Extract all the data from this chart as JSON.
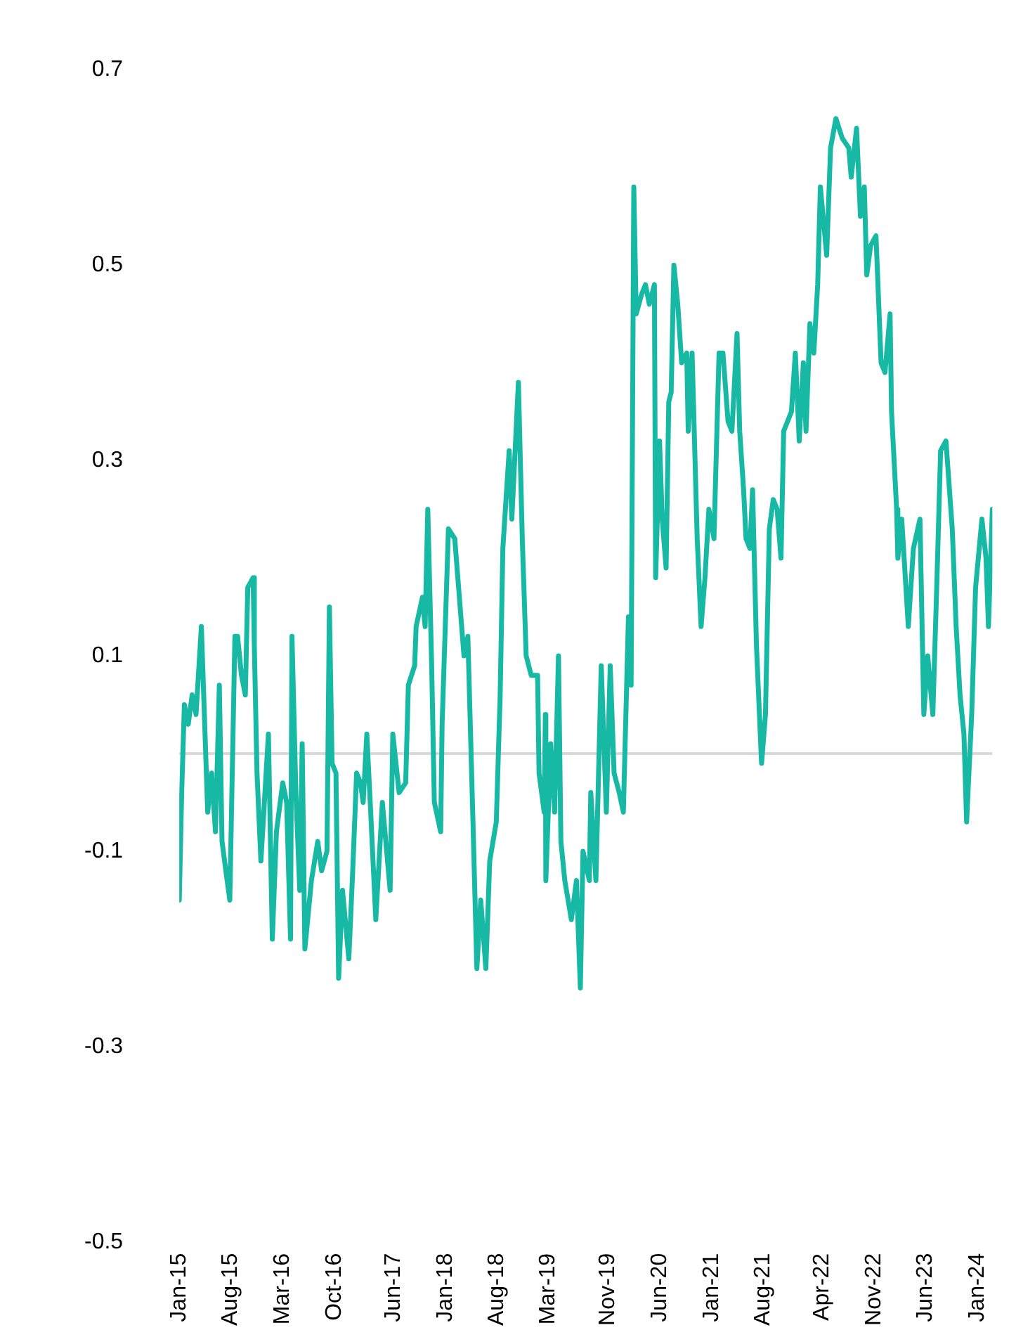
{
  "chart_data": {
    "type": "line",
    "line_style": "solid",
    "marker": "none",
    "grid": false,
    "legend": false,
    "xlim": [
      "2015-01-01",
      "2024-03-01"
    ],
    "xticks": [
      {
        "value": "2015-01-01",
        "label": "Jan-15"
      },
      {
        "value": "2015-08-01",
        "label": "Aug-15"
      },
      {
        "value": "2016-03-01",
        "label": "Mar-16"
      },
      {
        "value": "2016-10-01",
        "label": "Oct-16"
      },
      {
        "value": "2017-06-01",
        "label": "Jun-17"
      },
      {
        "value": "2018-01-01",
        "label": "Jan-18"
      },
      {
        "value": "2018-08-01",
        "label": "Aug-18"
      },
      {
        "value": "2019-03-01",
        "label": "Mar-19"
      },
      {
        "value": "2019-11-01",
        "label": "Nov-19"
      },
      {
        "value": "2020-06-01",
        "label": "Jun-20"
      },
      {
        "value": "2021-01-01",
        "label": "Jan-21"
      },
      {
        "value": "2021-08-01",
        "label": "Aug-21"
      },
      {
        "value": "2022-04-01",
        "label": "Apr-22"
      },
      {
        "value": "2022-11-01",
        "label": "Nov-22"
      },
      {
        "value": "2023-06-01",
        "label": "Jun-23"
      },
      {
        "value": "2024-01-01",
        "label": "Jan-24"
      }
    ],
    "ylim": [
      -0.5,
      0.7
    ],
    "yticks": [
      -0.5,
      -0.3,
      -0.1,
      0.1,
      0.3,
      0.5,
      0.7
    ],
    "ref_lines": [
      {
        "axis": "y",
        "value": 0,
        "color": "#d9d9d9"
      }
    ],
    "series": [
      {
        "color": "#17b9a5",
        "x": [
          "2015-01-01",
          "2015-01-11",
          "2015-01-22",
          "2015-02-07",
          "2015-02-23",
          "2015-03-11",
          "2015-04-02",
          "2015-04-28",
          "2015-05-14",
          "2015-05-30",
          "2015-06-15",
          "2015-06-26",
          "2015-07-17",
          "2015-07-28",
          "2015-08-18",
          "2015-08-29",
          "2015-09-14",
          "2015-09-30",
          "2015-10-10",
          "2015-11-01",
          "2015-11-06",
          "2015-11-17",
          "2015-12-03",
          "2016-01-03",
          "2016-01-19",
          "2016-02-05",
          "2016-03-02",
          "2016-03-18",
          "2016-04-03",
          "2016-04-09",
          "2016-04-25",
          "2016-05-11",
          "2016-05-21",
          "2016-06-01",
          "2016-06-28",
          "2016-07-24",
          "2016-08-09",
          "2016-08-31",
          "2016-09-10",
          "2016-09-21",
          "2016-10-07",
          "2016-10-18",
          "2016-11-03",
          "2016-11-29",
          "2016-12-15",
          "2016-12-31",
          "2017-01-16",
          "2017-01-27",
          "2017-02-11",
          "2017-02-27",
          "2017-03-20",
          "2017-04-16",
          "2017-05-18",
          "2017-05-29",
          "2017-06-24",
          "2017-07-21",
          "2017-08-01",
          "2017-08-27",
          "2017-09-02",
          "2017-09-28",
          "2017-10-09",
          "2017-10-20",
          "2017-11-05",
          "2017-11-16",
          "2017-12-12",
          "2017-12-18",
          "2018-01-13",
          "2018-02-08",
          "2018-03-18",
          "2018-04-03",
          "2018-04-24",
          "2018-05-10",
          "2018-05-26",
          "2018-06-16",
          "2018-07-02",
          "2018-07-29",
          "2018-08-14",
          "2018-08-25",
          "2018-09-20",
          "2018-10-01",
          "2018-10-28",
          "2018-11-13",
          "2018-11-29",
          "2018-12-20",
          "2019-01-15",
          "2019-01-21",
          "2019-02-11",
          "2019-02-16",
          "2019-02-18",
          "2019-03-10",
          "2019-03-26",
          "2019-04-11",
          "2019-04-21",
          "2019-05-07",
          "2019-06-03",
          "2019-06-24",
          "2019-07-10",
          "2019-07-21",
          "2019-08-16",
          "2019-08-22",
          "2019-09-12",
          "2019-10-04",
          "2019-10-25",
          "2019-11-10",
          "2019-11-26",
          "2019-12-17",
          "2020-01-03",
          "2020-01-24",
          "2020-02-04",
          "2020-02-15",
          "2020-02-25",
          "2020-03-18",
          "2020-04-03",
          "2020-04-19",
          "2020-05-10",
          "2020-05-15",
          "2020-05-31",
          "2020-06-11",
          "2020-06-27",
          "2020-07-08",
          "2020-07-18",
          "2020-07-29",
          "2020-08-14",
          "2020-08-30",
          "2020-09-20",
          "2020-09-26",
          "2020-10-12",
          "2020-11-02",
          "2020-11-18",
          "2020-12-04",
          "2020-12-20",
          "2021-01-10",
          "2021-01-31",
          "2021-02-16",
          "2021-03-09",
          "2021-03-25",
          "2021-04-15",
          "2021-04-26",
          "2021-05-12",
          "2021-05-22",
          "2021-06-07",
          "2021-06-18",
          "2021-07-04",
          "2021-07-25",
          "2021-08-10",
          "2021-08-26",
          "2021-09-11",
          "2021-09-27",
          "2021-10-13",
          "2021-10-24",
          "2021-11-09",
          "2021-11-25",
          "2021-12-11",
          "2021-12-27",
          "2022-01-13",
          "2022-01-24",
          "2022-02-09",
          "2022-02-25",
          "2022-03-13",
          "2022-03-24",
          "2022-04-19",
          "2022-05-05",
          "2022-05-27",
          "2022-06-22",
          "2022-07-19",
          "2022-07-29",
          "2022-08-20",
          "2022-09-05",
          "2022-09-21",
          "2022-10-01",
          "2022-10-17",
          "2022-11-08",
          "2022-11-29",
          "2022-12-15",
          "2023-01-05",
          "2023-01-11",
          "2023-02-01",
          "2023-02-06",
          "2023-02-22",
          "2023-03-21",
          "2023-04-11",
          "2023-05-08",
          "2023-05-24",
          "2023-06-09",
          "2023-06-30",
          "2023-07-16",
          "2023-08-01",
          "2023-08-23",
          "2023-09-18",
          "2023-10-04",
          "2023-10-20",
          "2023-11-05",
          "2023-11-16",
          "2023-12-07",
          "2023-12-23",
          "2024-01-18",
          "2024-02-04",
          "2024-02-14",
          "2024-03-01"
        ],
        "values": [
          -0.15,
          -0.04,
          0.05,
          0.03,
          0.06,
          0.04,
          0.13,
          -0.06,
          -0.02,
          -0.08,
          0.07,
          -0.09,
          -0.13,
          -0.15,
          0.12,
          0.12,
          0.08,
          0.06,
          0.17,
          0.18,
          0.11,
          -0.02,
          -0.11,
          0.02,
          -0.19,
          -0.08,
          -0.03,
          -0.05,
          -0.19,
          0.12,
          -0.04,
          -0.14,
          0.01,
          -0.2,
          -0.13,
          -0.09,
          -0.12,
          -0.1,
          0.15,
          -0.01,
          -0.02,
          -0.23,
          -0.14,
          -0.21,
          -0.12,
          -0.02,
          -0.03,
          -0.05,
          0.02,
          -0.06,
          -0.17,
          -0.05,
          -0.14,
          0.02,
          -0.04,
          -0.03,
          0.07,
          0.09,
          0.13,
          0.16,
          0.13,
          0.25,
          0.09,
          -0.05,
          -0.08,
          0.03,
          0.23,
          0.22,
          0.1,
          0.12,
          -0.07,
          -0.22,
          -0.15,
          -0.22,
          -0.11,
          -0.07,
          0.06,
          0.21,
          0.31,
          0.24,
          0.38,
          0.22,
          0.1,
          0.08,
          0.08,
          -0.02,
          -0.06,
          0.04,
          -0.13,
          0.01,
          -0.06,
          0.1,
          -0.09,
          -0.13,
          -0.17,
          -0.13,
          -0.24,
          -0.1,
          -0.13,
          -0.04,
          -0.13,
          0.09,
          -0.06,
          0.09,
          -0.02,
          -0.04,
          -0.06,
          0.14,
          0.07,
          0.58,
          0.45,
          0.47,
          0.48,
          0.46,
          0.48,
          0.18,
          0.32,
          0.24,
          0.19,
          0.36,
          0.37,
          0.5,
          0.46,
          0.4,
          0.41,
          0.33,
          0.41,
          0.22,
          0.13,
          0.18,
          0.25,
          0.22,
          0.41,
          0.41,
          0.34,
          0.33,
          0.43,
          0.33,
          0.27,
          0.22,
          0.21,
          0.27,
          0.11,
          -0.01,
          0.04,
          0.23,
          0.26,
          0.25,
          0.2,
          0.33,
          0.34,
          0.35,
          0.41,
          0.32,
          0.4,
          0.33,
          0.44,
          0.41,
          0.48,
          0.58,
          0.51,
          0.62,
          0.65,
          0.63,
          0.62,
          0.59,
          0.64,
          0.55,
          0.58,
          0.49,
          0.52,
          0.53,
          0.4,
          0.39,
          0.45,
          0.35,
          0.25,
          0.2,
          0.24,
          0.13,
          0.21,
          0.24,
          0.04,
          0.1,
          0.04,
          0.17,
          0.31,
          0.32,
          0.23,
          0.13,
          0.06,
          0.02,
          -0.07,
          0.04,
          0.17,
          0.24,
          0.2,
          0.13,
          0.25
        ]
      }
    ]
  }
}
